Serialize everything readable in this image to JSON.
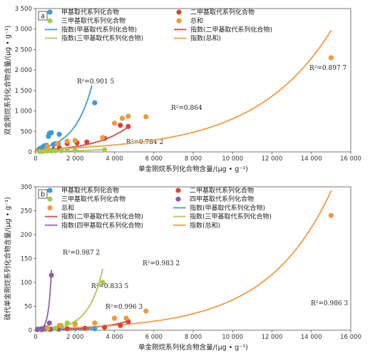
{
  "chart_data": [
    {
      "type": "scatter",
      "panel_label": "a",
      "xlabel": "单金刚烷系列化合物含量/(μg • g⁻¹)",
      "ylabel": "双金刚烷系列化合物含量/(μg • g⁻¹)",
      "xlim": [
        0,
        16000
      ],
      "ylim": [
        0,
        3500
      ],
      "xticks": [
        0,
        2000,
        4000,
        6000,
        8000,
        10000,
        12000,
        14000,
        16000
      ],
      "xtick_labels": [
        "0",
        "2 000",
        "4 000",
        "6 000",
        "8 000",
        "10 000",
        "12 000",
        "14 000",
        "16 000"
      ],
      "yticks": [
        0,
        500,
        1000,
        1500,
        2000,
        2500,
        3000,
        3500
      ],
      "ytick_labels": [
        "0",
        "500",
        "1 000",
        "1 500",
        "2 000",
        "2 500",
        "3 000",
        "3 500"
      ],
      "legend_position": "top",
      "series": [
        {
          "name": "甲基取代系列化合物",
          "color": "#3a9bd5",
          "x": [
            200,
            350,
            450,
            550,
            650,
            700,
            800,
            900,
            1000,
            1150,
            1200,
            3000
          ],
          "y": [
            80,
            120,
            150,
            160,
            380,
            450,
            470,
            180,
            200,
            200,
            430,
            1200
          ]
        },
        {
          "name": "二甲基取代系列化合物",
          "color": "#d9443a",
          "x": [
            300,
            600,
            900,
            1200,
            1600,
            2100,
            2600,
            3500,
            4300,
            4700
          ],
          "y": [
            20,
            40,
            60,
            100,
            200,
            220,
            240,
            330,
            650,
            620
          ]
        },
        {
          "name": "三甲基取代系列化合物",
          "color": "#a6c94b",
          "x": [
            200,
            400,
            600,
            800,
            1000,
            1300,
            1600,
            2000,
            3500
          ],
          "y": [
            10,
            15,
            20,
            25,
            30,
            30,
            40,
            45,
            50
          ]
        },
        {
          "name": "总和",
          "color": "#f2993a",
          "x": [
            600,
            1100,
            1600,
            2000,
            3400,
            4000,
            4400,
            4700,
            5600,
            15000
          ],
          "y": [
            130,
            200,
            260,
            280,
            350,
            700,
            820,
            870,
            860,
            2300
          ]
        }
      ],
      "trendlines": [
        {
          "name": "指数(甲基取代系列化合物)",
          "color": "#3a9bd5",
          "a": 70,
          "b": 0.0011,
          "x_range": [
            0,
            2850
          ],
          "r2_label": "R²=0.901 5"
        },
        {
          "name": "指数(二甲基取代系列化合物)",
          "color": "#d9443a",
          "a": 40,
          "b": 0.00058,
          "x_range": [
            0,
            4800
          ],
          "r2_label": "R²=0.864"
        },
        {
          "name": "指数(三甲基取代系列化合物)",
          "color": "#a6c94b",
          "a": 8,
          "b": 0.00058,
          "x_range": [
            0,
            3600
          ],
          "r2_label": "R²=0.784 2"
        },
        {
          "name": "指数(总和)",
          "color": "#f2993a",
          "a": 60,
          "b": 0.00026,
          "x_range": [
            0,
            15000
          ],
          "r2_label": "R²=0.897 7"
        }
      ]
    },
    {
      "type": "scatter",
      "panel_label": "b",
      "xlabel": "单金刚烷系列化合物含量/(μg • g⁻¹)",
      "ylabel": "硫代单金刚烷系列化合物含量/(μg • g⁻¹)",
      "xlim": [
        0,
        16000
      ],
      "ylim": [
        0,
        300
      ],
      "xticks": [
        0,
        2000,
        4000,
        6000,
        8000,
        10000,
        12000,
        14000,
        16000
      ],
      "xtick_labels": [
        "0",
        "2 000",
        "4 000",
        "6 000",
        "8 000",
        "10 000",
        "12 000",
        "14 000",
        "16 000"
      ],
      "yticks": [
        0,
        50,
        100,
        150,
        200,
        250,
        300
      ],
      "ytick_labels": [
        "0",
        "50",
        "100",
        "150",
        "200",
        "250",
        "300"
      ],
      "legend_position": "top",
      "series": [
        {
          "name": "甲基取代系列化合物",
          "color": "#3a9bd5",
          "x": [
            100,
            300,
            500,
            800,
            1200,
            3000
          ],
          "y": [
            1,
            1,
            2,
            2,
            2,
            3
          ]
        },
        {
          "name": "二甲基取代系列化合物",
          "color": "#d9443a",
          "x": [
            300,
            700,
            1100,
            1600,
            2500,
            3500,
            4300,
            4700
          ],
          "y": [
            1,
            2,
            3,
            3,
            4,
            6,
            10,
            18
          ]
        },
        {
          "name": "三甲基取代系列化合物",
          "color": "#a6c94b",
          "x": [
            200,
            600,
            1000,
            1300,
            1600,
            2000,
            3400
          ],
          "y": [
            2,
            3,
            4,
            10,
            15,
            15,
            100
          ]
        },
        {
          "name": "四甲基取代系列化合物",
          "color": "#8b5ea8",
          "x": [
            100,
            300,
            500,
            700,
            800
          ],
          "y": [
            2,
            3,
            5,
            15,
            115
          ]
        },
        {
          "name": "总和",
          "color": "#f2993a",
          "x": [
            600,
            1200,
            2000,
            3000,
            4000,
            4600,
            5600,
            15000
          ],
          "y": [
            5,
            10,
            12,
            15,
            25,
            25,
            40,
            240
          ]
        }
      ],
      "trendlines": [
        {
          "name": "指数(甲基取代系列化合物)",
          "color": "#3a9bd5",
          "a": 0.9,
          "b": 0.0004,
          "x_range": [
            0,
            3000
          ],
          "r2_label": "R²=0.833 5"
        },
        {
          "name": "指数(二甲基取代系列化合物)",
          "color": "#d9443a",
          "a": 0.9,
          "b": 0.00065,
          "x_range": [
            0,
            4700
          ],
          "r2_label": "R²=0.996 3"
        },
        {
          "name": "指数(三甲基取代系列化合物)",
          "color": "#a6c94b",
          "a": 1.2,
          "b": 0.00137,
          "x_range": [
            0,
            3400
          ],
          "r2_label": "R²=0.983 2"
        },
        {
          "name": "指数(四甲基取代系列化合物)",
          "color": "#8b5ea8",
          "a": 0.5,
          "b": 0.0069,
          "x_range": [
            0,
            800
          ],
          "r2_label": "R²=0.987 2"
        },
        {
          "name": "指数(总和)",
          "color": "#f2993a",
          "a": 3,
          "b": 0.000305,
          "x_range": [
            0,
            15000
          ],
          "r2_label": "R²=0.986 3"
        }
      ]
    }
  ]
}
